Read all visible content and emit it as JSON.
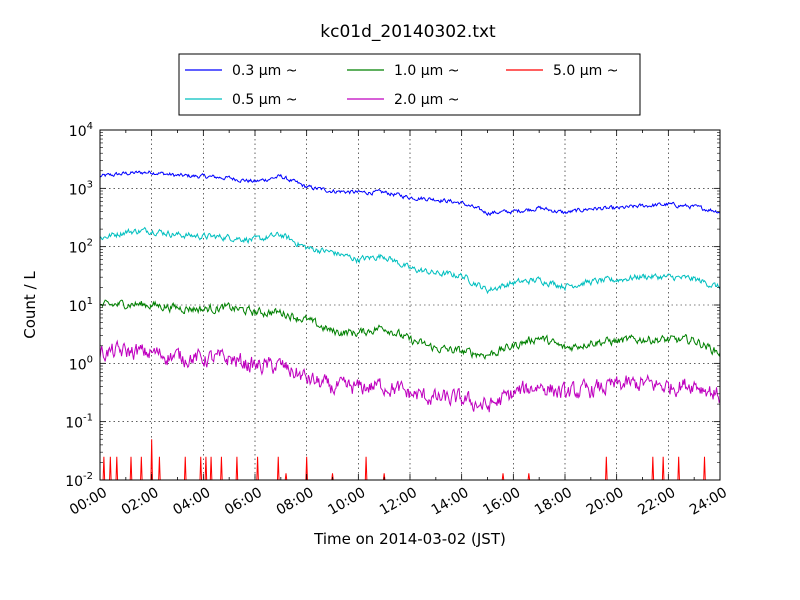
{
  "chart_data": {
    "type": "line",
    "title": "kc01d_20140302.txt",
    "xlabel": "Time on 2014-03-02 (JST)",
    "ylabel": "Count / L",
    "yscale": "log",
    "xlim": [
      "00:00",
      "24:00"
    ],
    "ylim": [
      0.01,
      10000
    ],
    "grid": true,
    "legend_position": "top-center, above plot",
    "x_ticks": [
      "00:00",
      "02:00",
      "04:00",
      "06:00",
      "08:00",
      "10:00",
      "12:00",
      "14:00",
      "16:00",
      "18:00",
      "20:00",
      "22:00",
      "24:00"
    ],
    "y_ticks": [
      {
        "value": 0.01,
        "base": "10",
        "exp": "-2"
      },
      {
        "value": 0.1,
        "base": "10",
        "exp": "-1"
      },
      {
        "value": 1,
        "base": "10",
        "exp": "0"
      },
      {
        "value": 10,
        "base": "10",
        "exp": "1"
      },
      {
        "value": 100,
        "base": "10",
        "exp": "2"
      },
      {
        "value": 1000,
        "base": "10",
        "exp": "3"
      },
      {
        "value": 10000,
        "base": "10",
        "exp": "4"
      }
    ],
    "x_hours": [
      0,
      1,
      2,
      3,
      4,
      5,
      6,
      7,
      8,
      9,
      10,
      11,
      12,
      13,
      14,
      15,
      16,
      17,
      18,
      19,
      20,
      21,
      22,
      23,
      24
    ],
    "series": [
      {
        "name": "0.3 μm ~",
        "color": "#0000ff",
        "noise": 0.03,
        "values": [
          1600,
          1800,
          1900,
          1650,
          1600,
          1500,
          1300,
          1600,
          1050,
          900,
          850,
          850,
          700,
          650,
          560,
          380,
          400,
          460,
          380,
          450,
          450,
          500,
          530,
          480,
          400
        ]
      },
      {
        "name": "0.5 μm ~",
        "color": "#00bfbf",
        "noise": 0.045,
        "values": [
          140,
          180,
          190,
          160,
          150,
          145,
          130,
          160,
          95,
          80,
          60,
          70,
          42,
          35,
          32,
          18,
          24,
          27,
          21,
          25,
          27,
          31,
          30,
          28,
          20
        ]
      },
      {
        "name": "1.0 μm ~",
        "color": "#008000",
        "noise": 0.06,
        "values": [
          9.5,
          10.5,
          10,
          9,
          8.5,
          9,
          7.5,
          7.5,
          5.5,
          3.5,
          3.3,
          4.2,
          2.5,
          1.8,
          1.6,
          1.4,
          2.0,
          2.8,
          1.8,
          2.3,
          2.4,
          2.6,
          2.5,
          2.5,
          1.5
        ]
      },
      {
        "name": "2.0 μm ~",
        "color": "#bf00bf",
        "noise": 0.12,
        "values": [
          1.5,
          1.6,
          1.5,
          1.3,
          1.2,
          1.2,
          0.9,
          0.9,
          0.55,
          0.38,
          0.38,
          0.42,
          0.3,
          0.25,
          0.24,
          0.18,
          0.3,
          0.42,
          0.3,
          0.35,
          0.42,
          0.45,
          0.4,
          0.45,
          0.28
        ]
      },
      {
        "name": "5.0 μm ~",
        "color": "#ff0000",
        "noise": 0,
        "baseline": 0.01,
        "spikes": [
          [
            0.15,
            0.025
          ],
          [
            0.4,
            0.025
          ],
          [
            0.65,
            0.025
          ],
          [
            1.2,
            0.025
          ],
          [
            1.6,
            0.025
          ],
          [
            2.0,
            0.05
          ],
          [
            2.3,
            0.025
          ],
          [
            3.3,
            0.025
          ],
          [
            3.9,
            0.025
          ],
          [
            4.1,
            0.025
          ],
          [
            4.3,
            0.025
          ],
          [
            4.7,
            0.025
          ],
          [
            5.3,
            0.025
          ],
          [
            6.1,
            0.025
          ],
          [
            6.9,
            0.025
          ],
          [
            7.2,
            0.013
          ],
          [
            8.0,
            0.025
          ],
          [
            9.0,
            0.013
          ],
          [
            10.3,
            0.025
          ],
          [
            11.0,
            0.013
          ],
          [
            15.6,
            0.013
          ],
          [
            16.6,
            0.013
          ],
          [
            19.6,
            0.025
          ],
          [
            21.4,
            0.025
          ],
          [
            21.8,
            0.025
          ],
          [
            22.4,
            0.025
          ],
          [
            23.4,
            0.025
          ]
        ]
      }
    ]
  }
}
